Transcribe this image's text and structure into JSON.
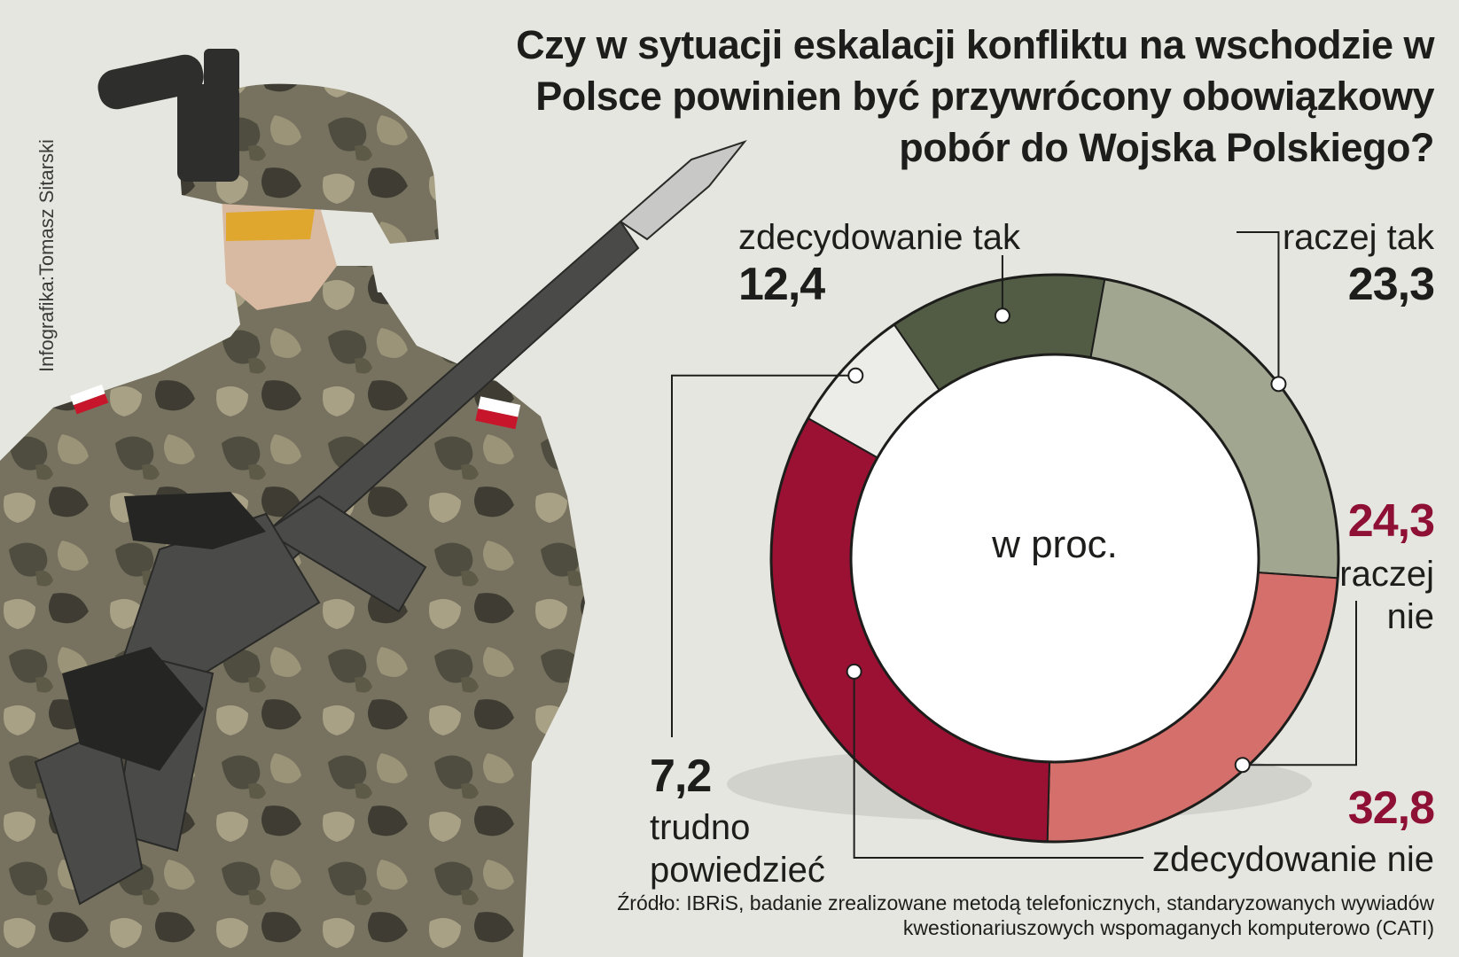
{
  "title": "Czy w sytuacji eskalacji konfliktu na wschodzie w Polsce powinien być przywrócony obowiązkowy pobór do Wojska Polskiego?",
  "credit": "Infografika:Tomasz Sitarski",
  "center_label": "w proc.",
  "source": "Źródło: IBRiS, badanie zrealizowane metodą telefonicznych, standaryzowanych wywiadów kwestionariuszowych wspomaganych komputerowo (CATI)",
  "chart_data": {
    "type": "pie",
    "title": "Czy w sytuacji eskalacji konfliktu na wschodzie w Polsce powinien być przywrócony obowiązkowy pobór do Wojska Polskiego?",
    "unit": "w proc.",
    "donut": true,
    "slices": [
      {
        "label": "zdecydowanie tak",
        "value": 12.4,
        "value_text": "12,4",
        "color": "#525c45"
      },
      {
        "label": "raczej tak",
        "value": 23.3,
        "value_text": "23,3",
        "color": "#a1a690"
      },
      {
        "label": "raczej nie",
        "value": 24.3,
        "value_text": "24,3",
        "color": "#d46f6b"
      },
      {
        "label": "zdecydowanie nie",
        "value": 32.8,
        "value_text": "32,8",
        "color": "#9a1133"
      },
      {
        "label": "trudno powiedzieć",
        "value": 7.2,
        "value_text": "7,2",
        "color": "#ecece8"
      }
    ]
  },
  "colors": {
    "background": "#e6e6e0",
    "title_text": "#1d1d1b",
    "value_accent": "#8e1034"
  },
  "illustration": {
    "subject": "soldier-in-camouflage-with-rifle",
    "flag": "poland-flag-patch"
  }
}
